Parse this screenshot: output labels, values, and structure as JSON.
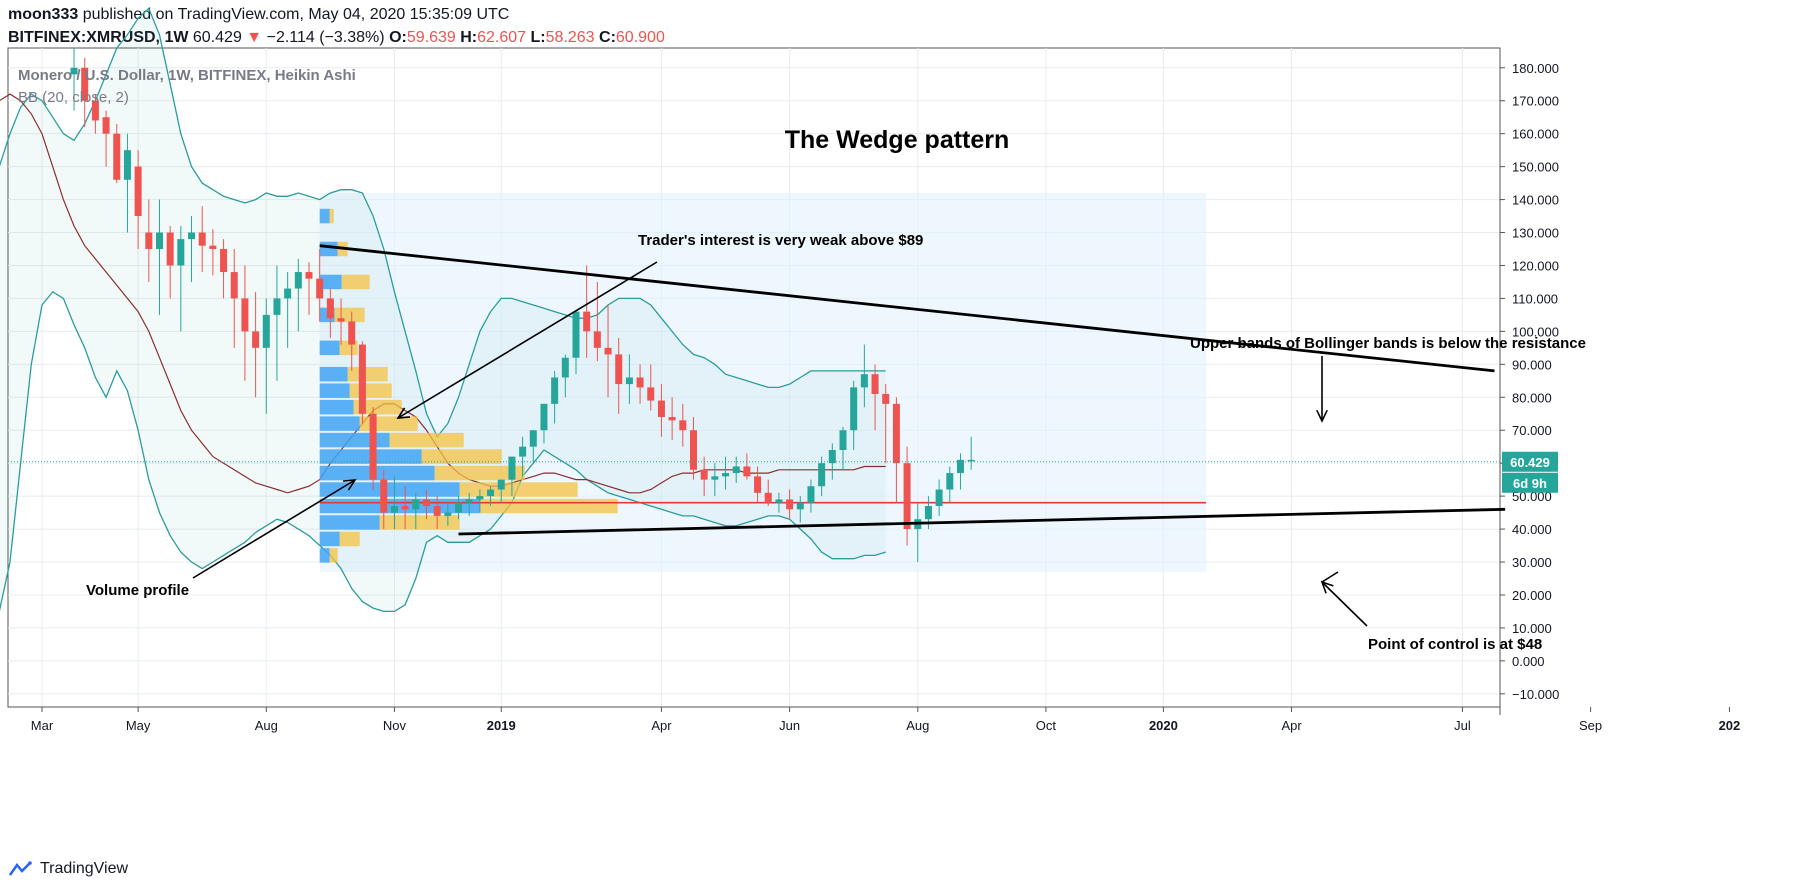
{
  "header": {
    "author": "moon333",
    "published_text": "published on TradingView.com, May 04, 2020 15:35:09 UTC",
    "symbol": "BITFINEX:XMRUSD, 1W",
    "last": "60.429",
    "change_arrow": "▼",
    "change": "−2.114 (−3.38%)",
    "o_label": "O:",
    "o": "59.639",
    "h_label": "H:",
    "h": "62.607",
    "l_label": "L:",
    "l": "58.263",
    "c_label": "C:",
    "c": "60.900"
  },
  "legend": {
    "title": "Monero / U.S. Dollar, 1W, BITFINEX, Heikin Ashi",
    "indicator": "BB (20, close, 2)"
  },
  "footer": {
    "brand": "TradingView",
    "logo_icon": "tradingview-logo-icon"
  },
  "colors": {
    "up": "#26a69a",
    "down": "#ef5350",
    "bb": "#2a9d9b",
    "basis": "#8b2e2e",
    "poc": "#e53935",
    "vp_up": "#42a5f5",
    "vp_down": "#f5c242",
    "price_tag": "#26a69a"
  },
  "chart_data": {
    "type": "candlestick",
    "title": "The Wedge pattern",
    "price_axis_ticks": [
      "180.000",
      "170.000",
      "160.000",
      "150.000",
      "140.000",
      "130.000",
      "120.000",
      "110.000",
      "100.000",
      "90.000",
      "80.000",
      "70.000",
      "60.000",
      "50.000",
      "40.000",
      "30.000",
      "20.000",
      "10.000",
      "0.000",
      "−10.000"
    ],
    "price_axis_values": [
      180,
      170,
      160,
      150,
      140,
      130,
      120,
      110,
      100,
      90,
      80,
      70,
      60,
      50,
      40,
      30,
      20,
      10,
      0,
      -10
    ],
    "ylim": [
      -14,
      186
    ],
    "time_axis_labels": [
      "Mar",
      "May",
      "Aug",
      "Nov",
      "2019",
      "Apr",
      "Jun",
      "Aug",
      "Oct",
      "2020",
      "Apr",
      "Jul",
      "Sep",
      "202"
    ],
    "time_axis_bold": [
      false,
      false,
      false,
      false,
      true,
      false,
      false,
      false,
      false,
      true,
      false,
      false,
      false,
      true
    ],
    "time_axis_weeks": [
      4,
      13,
      25,
      37,
      47,
      62,
      74,
      86,
      98,
      109,
      121,
      137,
      149,
      162
    ],
    "last_price_label": "60.429",
    "countdown_label": "6d 9h",
    "last_price": 60.429,
    "poc_value": 48,
    "candles_ohlc": [
      [
        178,
        186,
        167,
        180
      ],
      [
        180,
        183,
        162,
        170
      ],
      [
        170,
        172,
        160,
        164
      ],
      [
        165,
        167,
        150,
        160
      ],
      [
        160,
        163,
        145,
        146
      ],
      [
        146,
        160,
        130,
        155
      ],
      [
        150,
        155,
        125,
        135
      ],
      [
        130,
        140,
        115,
        125
      ],
      [
        125,
        140,
        105,
        130
      ],
      [
        130,
        132,
        110,
        120
      ],
      [
        120,
        132,
        100,
        128
      ],
      [
        128,
        135,
        115,
        130
      ],
      [
        130,
        138,
        118,
        126
      ],
      [
        126,
        131,
        117,
        125
      ],
      [
        125,
        128,
        110,
        118
      ],
      [
        118,
        125,
        95,
        110
      ],
      [
        110,
        120,
        85,
        100
      ],
      [
        100,
        112,
        80,
        95
      ],
      [
        95,
        110,
        75,
        105
      ],
      [
        105,
        120,
        85,
        110
      ],
      [
        110,
        118,
        95,
        113
      ],
      [
        113,
        122,
        100,
        118
      ],
      [
        118,
        121,
        105,
        116
      ],
      [
        116,
        125,
        103,
        110
      ],
      [
        110,
        113,
        98,
        104
      ],
      [
        104,
        110,
        96,
        103
      ],
      [
        103,
        106,
        88,
        96
      ],
      [
        96,
        97,
        72,
        75
      ],
      [
        75,
        77,
        52,
        55
      ],
      [
        55,
        58,
        40,
        45
      ],
      [
        45,
        56,
        40,
        47
      ],
      [
        47,
        53,
        40,
        46
      ],
      [
        46,
        51,
        40,
        49
      ],
      [
        49,
        52,
        43,
        47
      ],
      [
        47,
        50,
        40,
        44
      ],
      [
        44,
        48,
        41,
        45
      ],
      [
        45,
        50,
        43,
        48
      ],
      [
        48,
        51,
        44,
        49
      ],
      [
        49,
        52,
        45,
        50
      ],
      [
        50,
        53,
        47,
        52
      ],
      [
        52,
        55,
        48,
        55
      ],
      [
        55,
        60,
        50,
        62
      ],
      [
        62,
        68,
        56,
        65
      ],
      [
        65,
        70,
        60,
        70
      ],
      [
        70,
        78,
        66,
        78
      ],
      [
        78,
        88,
        72,
        86
      ],
      [
        86,
        93,
        80,
        92
      ],
      [
        92,
        101,
        87,
        106
      ],
      [
        106,
        120,
        92,
        100
      ],
      [
        100,
        115,
        91,
        95
      ],
      [
        95,
        108,
        80,
        93
      ],
      [
        93,
        98,
        75,
        84
      ],
      [
        84,
        93,
        78,
        86
      ],
      [
        86,
        90,
        78,
        83
      ],
      [
        83,
        90,
        76,
        79
      ],
      [
        79,
        84,
        68,
        74
      ],
      [
        74,
        80,
        67,
        73
      ],
      [
        73,
        78,
        65,
        70
      ],
      [
        70,
        74,
        55,
        58
      ],
      [
        58,
        62,
        50,
        55
      ],
      [
        55,
        60,
        50,
        56
      ],
      [
        56,
        62,
        52,
        57
      ],
      [
        57,
        62,
        54,
        59
      ],
      [
        59,
        63,
        55,
        56
      ],
      [
        56,
        59,
        48,
        51
      ],
      [
        51,
        55,
        47,
        48
      ],
      [
        48,
        51,
        45,
        49
      ],
      [
        49,
        52,
        43,
        46
      ],
      [
        46,
        50,
        42,
        48
      ],
      [
        48,
        55,
        45,
        53
      ],
      [
        53,
        62,
        50,
        60
      ],
      [
        60,
        66,
        55,
        64
      ],
      [
        64,
        71,
        58,
        70
      ],
      [
        70,
        85,
        64,
        83
      ],
      [
        83,
        96,
        77,
        87
      ],
      [
        87,
        90,
        70,
        81
      ],
      [
        81,
        84,
        60,
        78
      ],
      [
        78,
        80,
        48,
        60
      ],
      [
        60,
        65,
        35,
        40
      ],
      [
        40,
        48,
        30,
        43
      ],
      [
        43,
        50,
        40,
        47
      ],
      [
        47,
        55,
        44,
        52
      ],
      [
        52,
        59,
        48,
        57
      ],
      [
        57,
        63,
        52,
        61
      ],
      [
        61,
        68,
        58,
        61
      ]
    ],
    "candle_start_week": 7,
    "annotations": [
      {
        "text": "Trader's interest is very weak above $89"
      },
      {
        "text": "Upper bands of Bollinger bands is below the resistance"
      },
      {
        "text": "Volume profile"
      },
      {
        "text": "Point of control is at $48"
      }
    ],
    "volume_profile": {
      "rows": [
        {
          "price": 135,
          "up": 10,
          "down": 4
        },
        {
          "price": 125,
          "up": 18,
          "down": 10
        },
        {
          "price": 115,
          "up": 22,
          "down": 28
        },
        {
          "price": 105,
          "up": 15,
          "down": 30
        },
        {
          "price": 95,
          "up": 20,
          "down": 18
        },
        {
          "price": 87,
          "up": 28,
          "down": 40
        },
        {
          "price": 82,
          "up": 30,
          "down": 42
        },
        {
          "price": 77,
          "up": 34,
          "down": 48
        },
        {
          "price": 72,
          "up": 40,
          "down": 58
        },
        {
          "price": 67,
          "up": 70,
          "down": 74
        },
        {
          "price": 62,
          "up": 102,
          "down": 80
        },
        {
          "price": 57,
          "up": 115,
          "down": 90
        },
        {
          "price": 52,
          "up": 140,
          "down": 118
        },
        {
          "price": 47,
          "up": 160,
          "down": 138
        },
        {
          "price": 42,
          "up": 60,
          "down": 80
        },
        {
          "price": 37,
          "up": 20,
          "down": 20
        },
        {
          "price": 32,
          "up": 10,
          "down": 8
        }
      ]
    },
    "bb_upper": [
      150,
      160,
      168,
      172,
      170,
      165,
      160,
      158,
      163,
      170,
      178,
      186,
      190,
      195,
      198,
      190,
      175,
      160,
      150,
      145,
      143,
      141,
      140,
      139,
      140,
      142,
      141,
      141,
      142,
      141,
      140,
      142,
      143,
      143,
      142,
      135,
      125,
      112,
      100,
      88,
      75,
      68,
      72,
      80,
      90,
      100,
      106,
      110,
      110,
      109,
      108,
      107,
      106,
      105,
      104,
      104,
      105,
      108,
      110,
      110,
      110,
      108,
      104,
      100,
      96,
      93,
      92,
      90,
      87,
      86,
      85,
      84,
      83,
      83,
      84,
      86,
      88,
      88,
      88,
      88,
      88,
      88,
      88,
      88
    ],
    "bb_lower": [
      15,
      30,
      60,
      90,
      108,
      112,
      110,
      102,
      95,
      86,
      80,
      88,
      82,
      70,
      55,
      45,
      38,
      33,
      30,
      28,
      30,
      32,
      34,
      36,
      39,
      41,
      43,
      42,
      40,
      38,
      35,
      32,
      28,
      22,
      18,
      16,
      15,
      15,
      17,
      25,
      36,
      38,
      36,
      36,
      36,
      38,
      40,
      44,
      48,
      56,
      60,
      64,
      62,
      60,
      58,
      55,
      53,
      51,
      50,
      49,
      48,
      47,
      46,
      45,
      44,
      44,
      43,
      42,
      41,
      41,
      42,
      43,
      44,
      44,
      43,
      40,
      37,
      33,
      31,
      31,
      31,
      32,
      32,
      33
    ],
    "bb_basis": [
      170,
      172,
      170,
      166,
      160,
      150,
      140,
      132,
      126,
      122,
      118,
      114,
      110,
      106,
      100,
      92,
      84,
      76,
      70,
      66,
      62,
      60,
      58,
      56,
      54,
      53,
      52,
      51,
      52,
      53,
      55,
      60,
      64,
      68,
      72,
      76,
      78,
      78,
      76,
      74,
      70,
      65,
      60,
      57,
      55,
      54,
      53,
      53,
      54,
      55,
      56,
      57,
      57,
      56,
      55,
      55,
      54,
      53,
      52,
      51,
      51,
      52,
      54,
      56,
      57,
      57,
      58,
      58,
      58,
      58,
      57,
      57,
      57,
      58,
      58,
      58,
      58,
      58,
      58,
      58,
      58,
      59,
      59,
      59
    ]
  }
}
